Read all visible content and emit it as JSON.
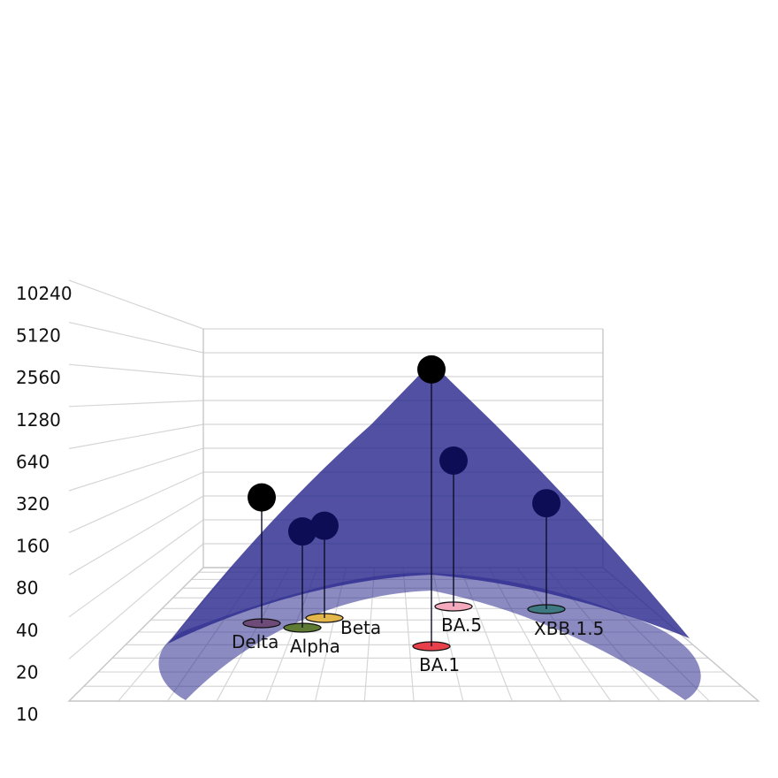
{
  "chart_data": {
    "type": "scatter",
    "title": "",
    "z_axis": {
      "scale": "log2",
      "ticks": [
        10,
        20,
        40,
        80,
        160,
        320,
        640,
        1280,
        2560,
        5120,
        10240
      ],
      "tick_labels": [
        "10",
        "20",
        "40",
        "80",
        "160",
        "320",
        "640",
        "1280",
        "2560",
        "5120",
        "10240"
      ]
    },
    "surface": {
      "color": "#2b2a8e",
      "description": "antibody landscape surface"
    },
    "series": [
      {
        "points": [
          {
            "label": "Delta",
            "z": 160,
            "color": "#6e4a78",
            "marker": "#000000"
          },
          {
            "label": "Alpha",
            "z": 80,
            "color": "#5e7a33",
            "marker": "#0d0d55"
          },
          {
            "label": "Beta",
            "z": 80,
            "color": "#e3b74c",
            "marker": "#0d0d55"
          },
          {
            "label": "BA.1",
            "z": 2560,
            "color": "#e8404a",
            "marker": "#000000"
          },
          {
            "label": "BA.5",
            "z": 320,
            "color": "#f4a9bd",
            "marker": "#0d0d55"
          },
          {
            "label": "XBB.1.5",
            "z": 120,
            "color": "#3f7a82",
            "marker": "#0d0d55"
          }
        ]
      }
    ],
    "grid": true,
    "legend": "none"
  }
}
